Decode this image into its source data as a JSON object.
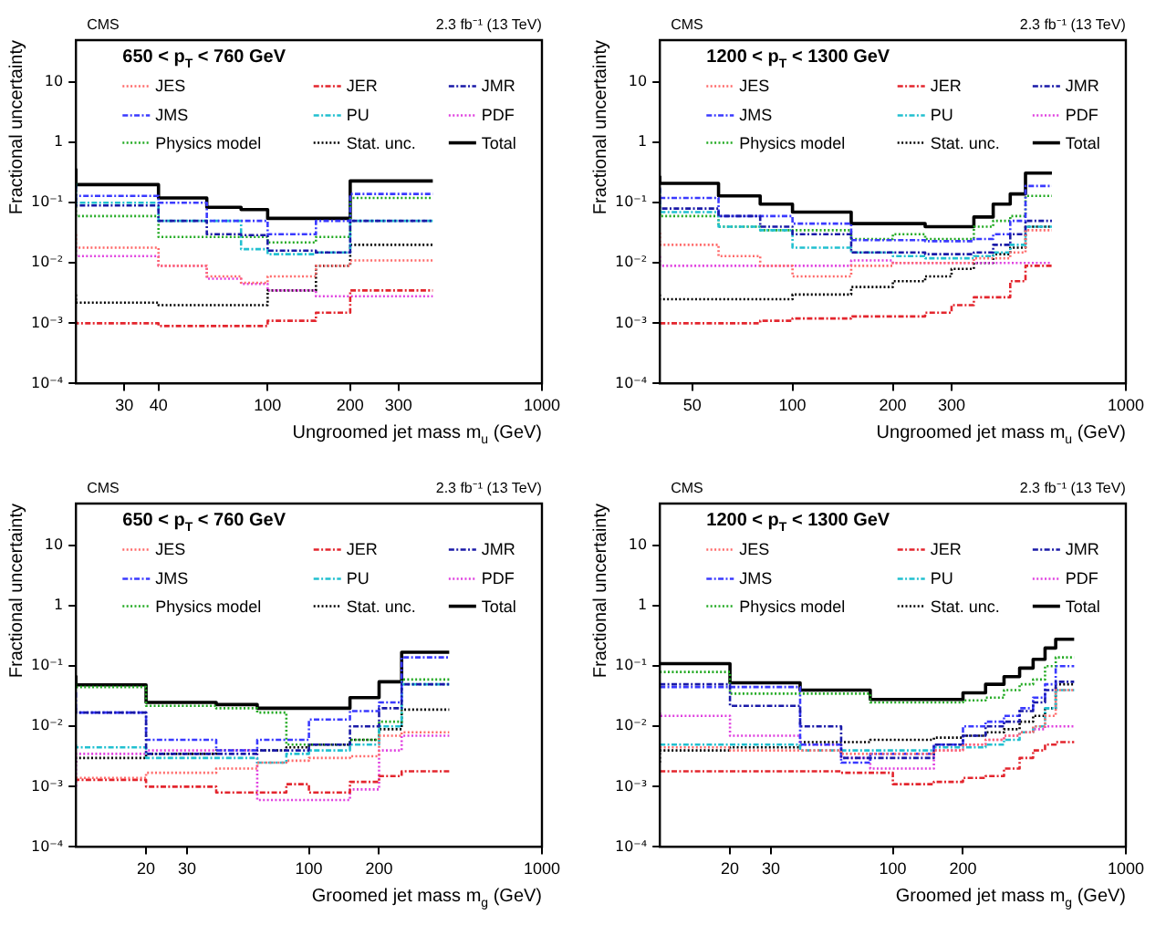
{
  "chart_data": [
    {
      "type": "step",
      "title": "650 < p$_{T}$ < 760 GeV",
      "annotations": [
        "CMS",
        "2.3 fb⁻¹ (13 TeV)"
      ],
      "xlabel": "Ungroomed jet mass m$_{u}$ (GeV)",
      "ylabel": "Fractional uncertainty",
      "log": "xy",
      "legend": "top",
      "xlim": [
        20,
        1000
      ],
      "xticks": [
        30,
        40,
        100,
        200,
        300,
        1000
      ],
      "ylim": [
        0.0001,
        50
      ],
      "yticks": [
        {
          "value": 0.0001,
          "label": "10⁻⁴"
        },
        {
          "value": 0.001,
          "label": "10⁻³"
        },
        {
          "value": 0.01,
          "label": "10⁻²"
        },
        {
          "value": 0.1,
          "label": "10⁻¹"
        },
        {
          "value": 1,
          "label": "1"
        },
        {
          "value": 10,
          "label": "10"
        }
      ],
      "x": [
        20,
        40,
        60,
        80,
        100,
        150,
        200,
        300,
        400
      ],
      "series": [
        {
          "name": "JES",
          "color": "#ff6a6a",
          "line_style": "dotted",
          "values": [
            0.03,
            0.018,
            0.009,
            0.006,
            0.0047,
            0.006,
            0.009,
            0.011,
            0.011
          ]
        },
        {
          "name": "JER",
          "color": "#e3262e",
          "line_style": "dashed",
          "values": [
            0.0011,
            0.001,
            0.0009,
            0.0009,
            0.0009,
            0.0011,
            0.0015,
            0.0035,
            0.0035
          ]
        },
        {
          "name": "JMR",
          "color": "#1a1aa8",
          "line_style": "dashed",
          "values": [
            0.19,
            0.09,
            0.05,
            0.03,
            0.029,
            0.016,
            0.015,
            0.05,
            0.05
          ]
        },
        {
          "name": "JMS",
          "color": "#3a3aff",
          "line_style": "dashed",
          "values": [
            0.11,
            0.13,
            0.1,
            0.05,
            0.05,
            0.03,
            0.05,
            0.14,
            0.14
          ]
        },
        {
          "name": "PU",
          "color": "#22c0d0",
          "line_style": "dashed",
          "values": [
            0.21,
            0.1,
            0.05,
            0.05,
            0.017,
            0.014,
            0.015,
            0.05,
            0.05
          ]
        },
        {
          "name": "PDF",
          "color": "#e040e0",
          "line_style": "dotted",
          "values": [
            0.019,
            0.013,
            0.009,
            0.0055,
            0.0045,
            0.0035,
            0.0028,
            0.0028,
            0.0028
          ]
        },
        {
          "name": "Physics model",
          "color": "#22aa22",
          "line_style": "dotted",
          "values": [
            0.22,
            0.06,
            0.027,
            0.027,
            0.027,
            0.022,
            0.027,
            0.12,
            0.12
          ]
        },
        {
          "name": "Stat. unc.",
          "color": "#000000",
          "line_style": "dotted",
          "values": [
            0.003,
            0.0022,
            0.002,
            0.002,
            0.002,
            0.0035,
            0.009,
            0.02,
            0.02
          ]
        },
        {
          "name": "Total",
          "color": "#000000",
          "line_style": "solid",
          "values": [
            0.37,
            0.2,
            0.12,
            0.084,
            0.077,
            0.055,
            0.055,
            0.23,
            0.23
          ]
        }
      ]
    },
    {
      "type": "step",
      "title": "1200 < p$_{T}$ < 1300 GeV",
      "annotations": [
        "CMS",
        "2.3 fb⁻¹ (13 TeV)"
      ],
      "xlabel": "Ungroomed jet mass m$_{u}$ (GeV)",
      "ylabel": "Fractional uncertainty",
      "log": "xy",
      "legend": "top",
      "xlim": [
        40,
        1000
      ],
      "xticks": [
        50,
        100,
        200,
        300,
        1000
      ],
      "ylim": [
        0.0001,
        50
      ],
      "yticks": [
        {
          "value": 0.0001,
          "label": "10⁻⁴"
        },
        {
          "value": 0.001,
          "label": "10⁻³"
        },
        {
          "value": 0.01,
          "label": "10⁻²"
        },
        {
          "value": 0.1,
          "label": "10⁻¹"
        },
        {
          "value": 1,
          "label": "1"
        },
        {
          "value": 10,
          "label": "10"
        }
      ],
      "x": [
        40,
        60,
        80,
        100,
        150,
        200,
        250,
        300,
        350,
        400,
        450,
        500,
        550,
        600
      ],
      "series": [
        {
          "name": "JES",
          "color": "#ff6a6a",
          "line_style": "dotted",
          "values": [
            0.032,
            0.02,
            0.013,
            0.009,
            0.006,
            0.009,
            0.01,
            0.01,
            0.01,
            0.012,
            0.012,
            0.015,
            0.035,
            0.035
          ]
        },
        {
          "name": "JER",
          "color": "#e3262e",
          "line_style": "dashed",
          "values": [
            0.001,
            0.001,
            0.001,
            0.0011,
            0.0012,
            0.0013,
            0.0013,
            0.0015,
            0.002,
            0.0027,
            0.0027,
            0.005,
            0.009,
            0.009
          ]
        },
        {
          "name": "JMR",
          "color": "#1a1aa8",
          "line_style": "dashed",
          "values": [
            0.18,
            0.08,
            0.06,
            0.04,
            0.03,
            0.015,
            0.015,
            0.014,
            0.014,
            0.015,
            0.02,
            0.03,
            0.05,
            0.05
          ]
        },
        {
          "name": "JMS",
          "color": "#3a3aff",
          "line_style": "dashed",
          "values": [
            0.12,
            0.12,
            0.06,
            0.06,
            0.045,
            0.024,
            0.024,
            0.023,
            0.023,
            0.025,
            0.03,
            0.05,
            0.19,
            0.19
          ]
        },
        {
          "name": "PU",
          "color": "#22c0d0",
          "line_style": "dashed",
          "values": [
            0.17,
            0.07,
            0.04,
            0.035,
            0.018,
            0.015,
            0.013,
            0.012,
            0.012,
            0.013,
            0.015,
            0.02,
            0.04,
            0.04
          ]
        },
        {
          "name": "PDF",
          "color": "#e040e0",
          "line_style": "dotted",
          "values": [
            0.013,
            0.009,
            0.009,
            0.009,
            0.009,
            0.011,
            0.01,
            0.01,
            0.01,
            0.01,
            0.01,
            0.01,
            0.01,
            0.01
          ]
        },
        {
          "name": "Physics model",
          "color": "#22aa22",
          "line_style": "dotted",
          "values": [
            0.09,
            0.06,
            0.04,
            0.035,
            0.035,
            0.025,
            0.03,
            0.025,
            0.025,
            0.04,
            0.05,
            0.06,
            0.13,
            0.13
          ]
        },
        {
          "name": "Stat. unc.",
          "color": "#000000",
          "line_style": "dotted",
          "values": [
            0.003,
            0.0025,
            0.0025,
            0.0025,
            0.003,
            0.004,
            0.005,
            0.006,
            0.008,
            0.01,
            0.014,
            0.018,
            0.04,
            0.04
          ]
        },
        {
          "name": "Total",
          "color": "#000000",
          "line_style": "solid",
          "values": [
            0.28,
            0.21,
            0.13,
            0.095,
            0.07,
            0.045,
            0.045,
            0.04,
            0.04,
            0.058,
            0.095,
            0.14,
            0.31,
            0.31
          ]
        }
      ]
    },
    {
      "type": "step",
      "title": "650 < p$_{T}$ < 760 GeV",
      "annotations": [
        "CMS",
        "2.3 fb⁻¹ (13 TeV)"
      ],
      "xlabel": "Groomed jet mass m$_{g}$ (GeV)",
      "ylabel": "Fractional uncertainty",
      "log": "xy",
      "legend": "top",
      "xlim": [
        10,
        1000
      ],
      "xticks": [
        20,
        30,
        100,
        200,
        1000
      ],
      "ylim": [
        0.0001,
        50
      ],
      "yticks": [
        {
          "value": 0.0001,
          "label": "10⁻⁴"
        },
        {
          "value": 0.001,
          "label": "10⁻³"
        },
        {
          "value": 0.01,
          "label": "10⁻²"
        },
        {
          "value": 0.1,
          "label": "10⁻¹"
        },
        {
          "value": 1,
          "label": "1"
        },
        {
          "value": 10,
          "label": "10"
        }
      ],
      "x": [
        10,
        20,
        40,
        60,
        80,
        100,
        150,
        200,
        250,
        300,
        400
      ],
      "series": [
        {
          "name": "JES",
          "color": "#ff6a6a",
          "line_style": "dotted",
          "values": [
            0.0014,
            0.0014,
            0.0017,
            0.002,
            0.0025,
            0.0027,
            0.003,
            0.0032,
            0.007,
            0.008,
            0.008
          ]
        },
        {
          "name": "JER",
          "color": "#e3262e",
          "line_style": "dashed",
          "values": [
            0.0014,
            0.0013,
            0.001,
            0.0008,
            0.0008,
            0.0011,
            0.0008,
            0.0012,
            0.0015,
            0.0018,
            0.0018
          ]
        },
        {
          "name": "JMR",
          "color": "#1a1aa8",
          "line_style": "dashed",
          "values": [
            0.02,
            0.017,
            0.0035,
            0.0035,
            0.004,
            0.004,
            0.005,
            0.01,
            0.02,
            0.05,
            0.05
          ]
        },
        {
          "name": "JMS",
          "color": "#3a3aff",
          "line_style": "dashed",
          "values": [
            0.037,
            0.017,
            0.006,
            0.004,
            0.006,
            0.006,
            0.013,
            0.018,
            0.025,
            0.14,
            0.14
          ]
        },
        {
          "name": "PU",
          "color": "#22c0d0",
          "line_style": "dashed",
          "values": [
            0.005,
            0.0045,
            0.003,
            0.003,
            0.0025,
            0.0035,
            0.004,
            0.005,
            0.01,
            0.05,
            0.05
          ]
        },
        {
          "name": "PDF",
          "color": "#e040e0",
          "line_style": "dotted",
          "values": [
            0.001,
            0.0035,
            0.004,
            0.004,
            0.0006,
            0.0006,
            0.0006,
            0.0009,
            0.004,
            0.007,
            0.007
          ]
        },
        {
          "name": "Physics model",
          "color": "#22aa22",
          "line_style": "dotted",
          "values": [
            0.052,
            0.045,
            0.022,
            0.02,
            0.017,
            0.005,
            0.005,
            0.006,
            0.012,
            0.06,
            0.06
          ]
        },
        {
          "name": "Stat. unc.",
          "color": "#000000",
          "line_style": "dotted",
          "values": [
            0.0025,
            0.003,
            0.0035,
            0.004,
            0.004,
            0.0045,
            0.005,
            0.006,
            0.009,
            0.019,
            0.019
          ]
        },
        {
          "name": "Total",
          "color": "#000000",
          "line_style": "solid",
          "values": [
            0.07,
            0.049,
            0.025,
            0.023,
            0.02,
            0.02,
            0.02,
            0.03,
            0.055,
            0.17,
            0.17
          ]
        }
      ]
    },
    {
      "type": "step",
      "title": "1200 < p$_{T}$ < 1300 GeV",
      "annotations": [
        "CMS",
        "2.3 fb⁻¹ (13 TeV)"
      ],
      "xlabel": "Groomed jet mass m$_{g}$ (GeV)",
      "ylabel": "Fractional uncertainty",
      "log": "xy",
      "legend": "top",
      "xlim": [
        10,
        1000
      ],
      "xticks": [
        20,
        30,
        100,
        200,
        1000
      ],
      "ylim": [
        0.0001,
        50
      ],
      "yticks": [
        {
          "value": 0.0001,
          "label": "10⁻⁴"
        },
        {
          "value": 0.001,
          "label": "10⁻³"
        },
        {
          "value": 0.01,
          "label": "10⁻²"
        },
        {
          "value": 0.1,
          "label": "10⁻¹"
        },
        {
          "value": 1,
          "label": "1"
        },
        {
          "value": 10,
          "label": "10"
        }
      ],
      "x": [
        10,
        20,
        40,
        60,
        80,
        100,
        150,
        200,
        250,
        300,
        350,
        400,
        450,
        500,
        550,
        600
      ],
      "series": [
        {
          "name": "JES",
          "color": "#ff6a6a",
          "line_style": "dotted",
          "values": [
            0.0045,
            0.0045,
            0.004,
            0.004,
            0.0035,
            0.0035,
            0.0035,
            0.004,
            0.005,
            0.006,
            0.007,
            0.008,
            0.01,
            0.015,
            0.04,
            0.04
          ]
        },
        {
          "name": "JER",
          "color": "#e3262e",
          "line_style": "dashed",
          "values": [
            0.0018,
            0.0018,
            0.0018,
            0.0018,
            0.0017,
            0.0017,
            0.0011,
            0.0012,
            0.0014,
            0.0015,
            0.002,
            0.003,
            0.004,
            0.005,
            0.0055,
            0.0055
          ]
        },
        {
          "name": "JMR",
          "color": "#1a1aa8",
          "line_style": "dashed",
          "values": [
            0.05,
            0.05,
            0.022,
            0.01,
            0.003,
            0.003,
            0.003,
            0.005,
            0.007,
            0.01,
            0.012,
            0.018,
            0.025,
            0.04,
            0.055,
            0.055
          ]
        },
        {
          "name": "JMS",
          "color": "#3a3aff",
          "line_style": "dashed",
          "values": [
            0.045,
            0.045,
            0.045,
            0.005,
            0.0025,
            0.0035,
            0.0035,
            0.005,
            0.01,
            0.012,
            0.015,
            0.02,
            0.03,
            0.05,
            0.1,
            0.1
          ]
        },
        {
          "name": "PU",
          "color": "#22c0d0",
          "line_style": "dashed",
          "values": [
            0.005,
            0.005,
            0.005,
            0.004,
            0.004,
            0.004,
            0.004,
            0.0045,
            0.0045,
            0.005,
            0.006,
            0.008,
            0.01,
            0.02,
            0.04,
            0.04
          ]
        },
        {
          "name": "PDF",
          "color": "#e040e0",
          "line_style": "dotted",
          "values": [
            0.017,
            0.015,
            0.007,
            0.005,
            0.003,
            0.002,
            0.002,
            0.004,
            0.005,
            0.006,
            0.007,
            0.008,
            0.009,
            0.01,
            0.01,
            0.01
          ]
        },
        {
          "name": "Physics model",
          "color": "#22aa22",
          "line_style": "dotted",
          "values": [
            0.08,
            0.08,
            0.035,
            0.035,
            0.035,
            0.025,
            0.025,
            0.025,
            0.027,
            0.03,
            0.04,
            0.05,
            0.06,
            0.1,
            0.14,
            0.14
          ]
        },
        {
          "name": "Stat. unc.",
          "color": "#000000",
          "line_style": "dotted",
          "values": [
            0.0025,
            0.004,
            0.0045,
            0.0055,
            0.0055,
            0.006,
            0.006,
            0.0065,
            0.007,
            0.008,
            0.009,
            0.012,
            0.015,
            0.02,
            0.05,
            0.05
          ]
        },
        {
          "name": "Total",
          "color": "#000000",
          "line_style": "solid",
          "values": [
            0.11,
            0.11,
            0.053,
            0.04,
            0.04,
            0.028,
            0.028,
            0.028,
            0.036,
            0.05,
            0.067,
            0.093,
            0.13,
            0.2,
            0.28,
            0.28
          ]
        }
      ]
    }
  ]
}
